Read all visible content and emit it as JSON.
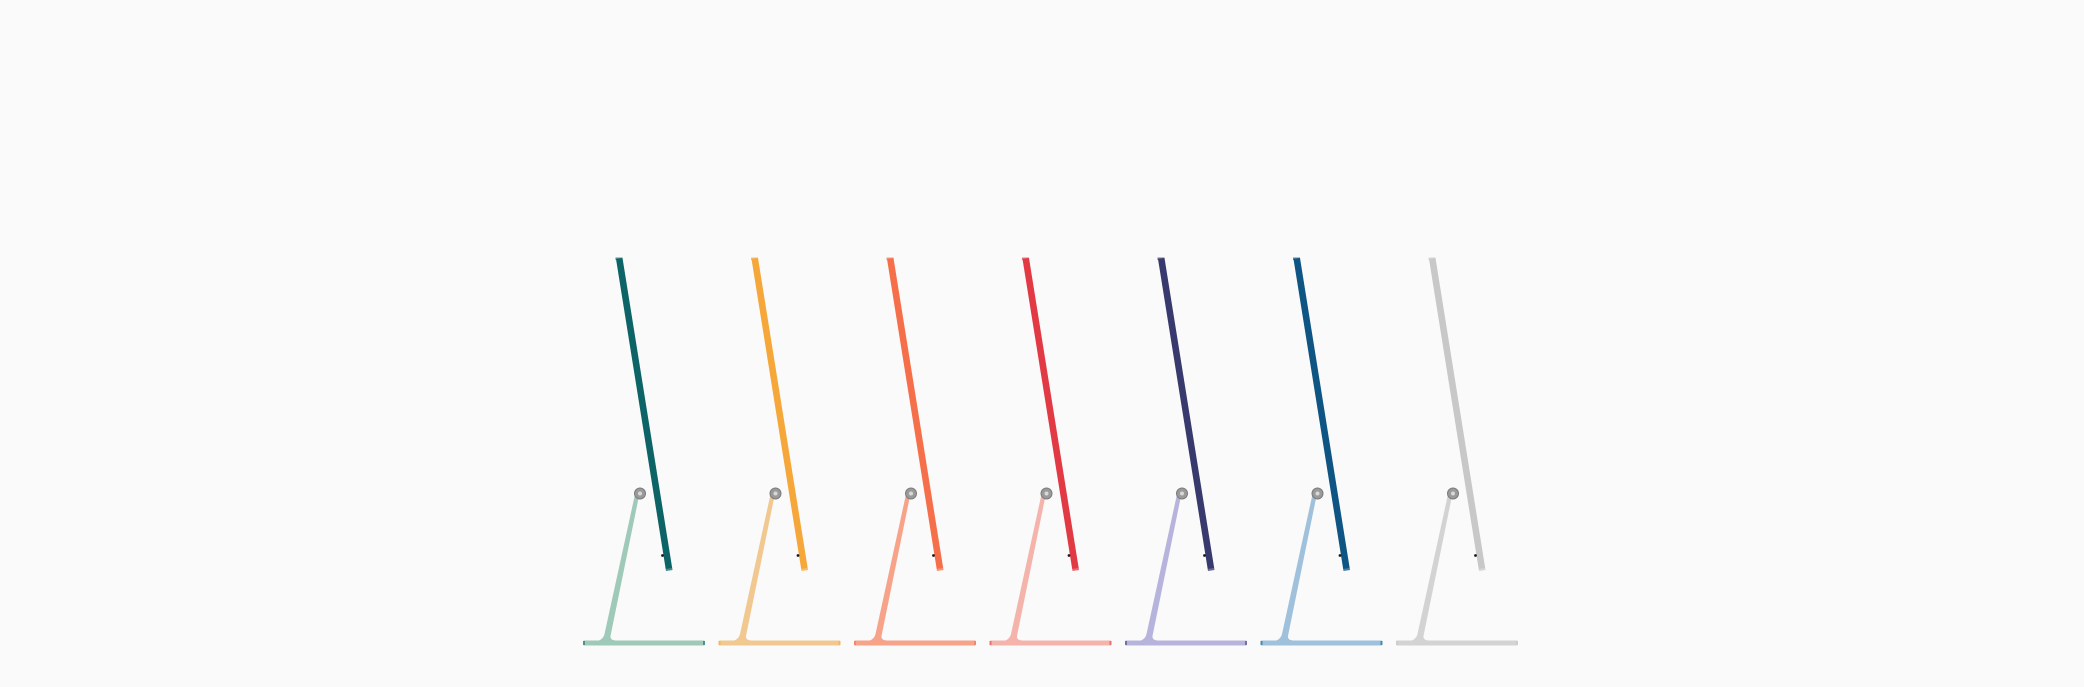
{
  "scene": {
    "background_color": "#fafafa",
    "subject": "imac-side-profile-lineup",
    "products": [
      {
        "id": "green",
        "screen_color": "#0d6467",
        "stand_color": "#9fc9b8"
      },
      {
        "id": "yellow",
        "screen_color": "#f5a73a",
        "stand_color": "#f1c890"
      },
      {
        "id": "orange",
        "screen_color": "#f5704a",
        "stand_color": "#f7a38a"
      },
      {
        "id": "pink",
        "screen_color": "#e23a44",
        "stand_color": "#f4b4ac"
      },
      {
        "id": "purple",
        "screen_color": "#383a6e",
        "stand_color": "#b6b4dc"
      },
      {
        "id": "blue",
        "screen_color": "#0f5583",
        "stand_color": "#9fc1dc"
      },
      {
        "id": "silver",
        "screen_color": "#c8c8c8",
        "stand_color": "#d3d3d3"
      }
    ]
  }
}
